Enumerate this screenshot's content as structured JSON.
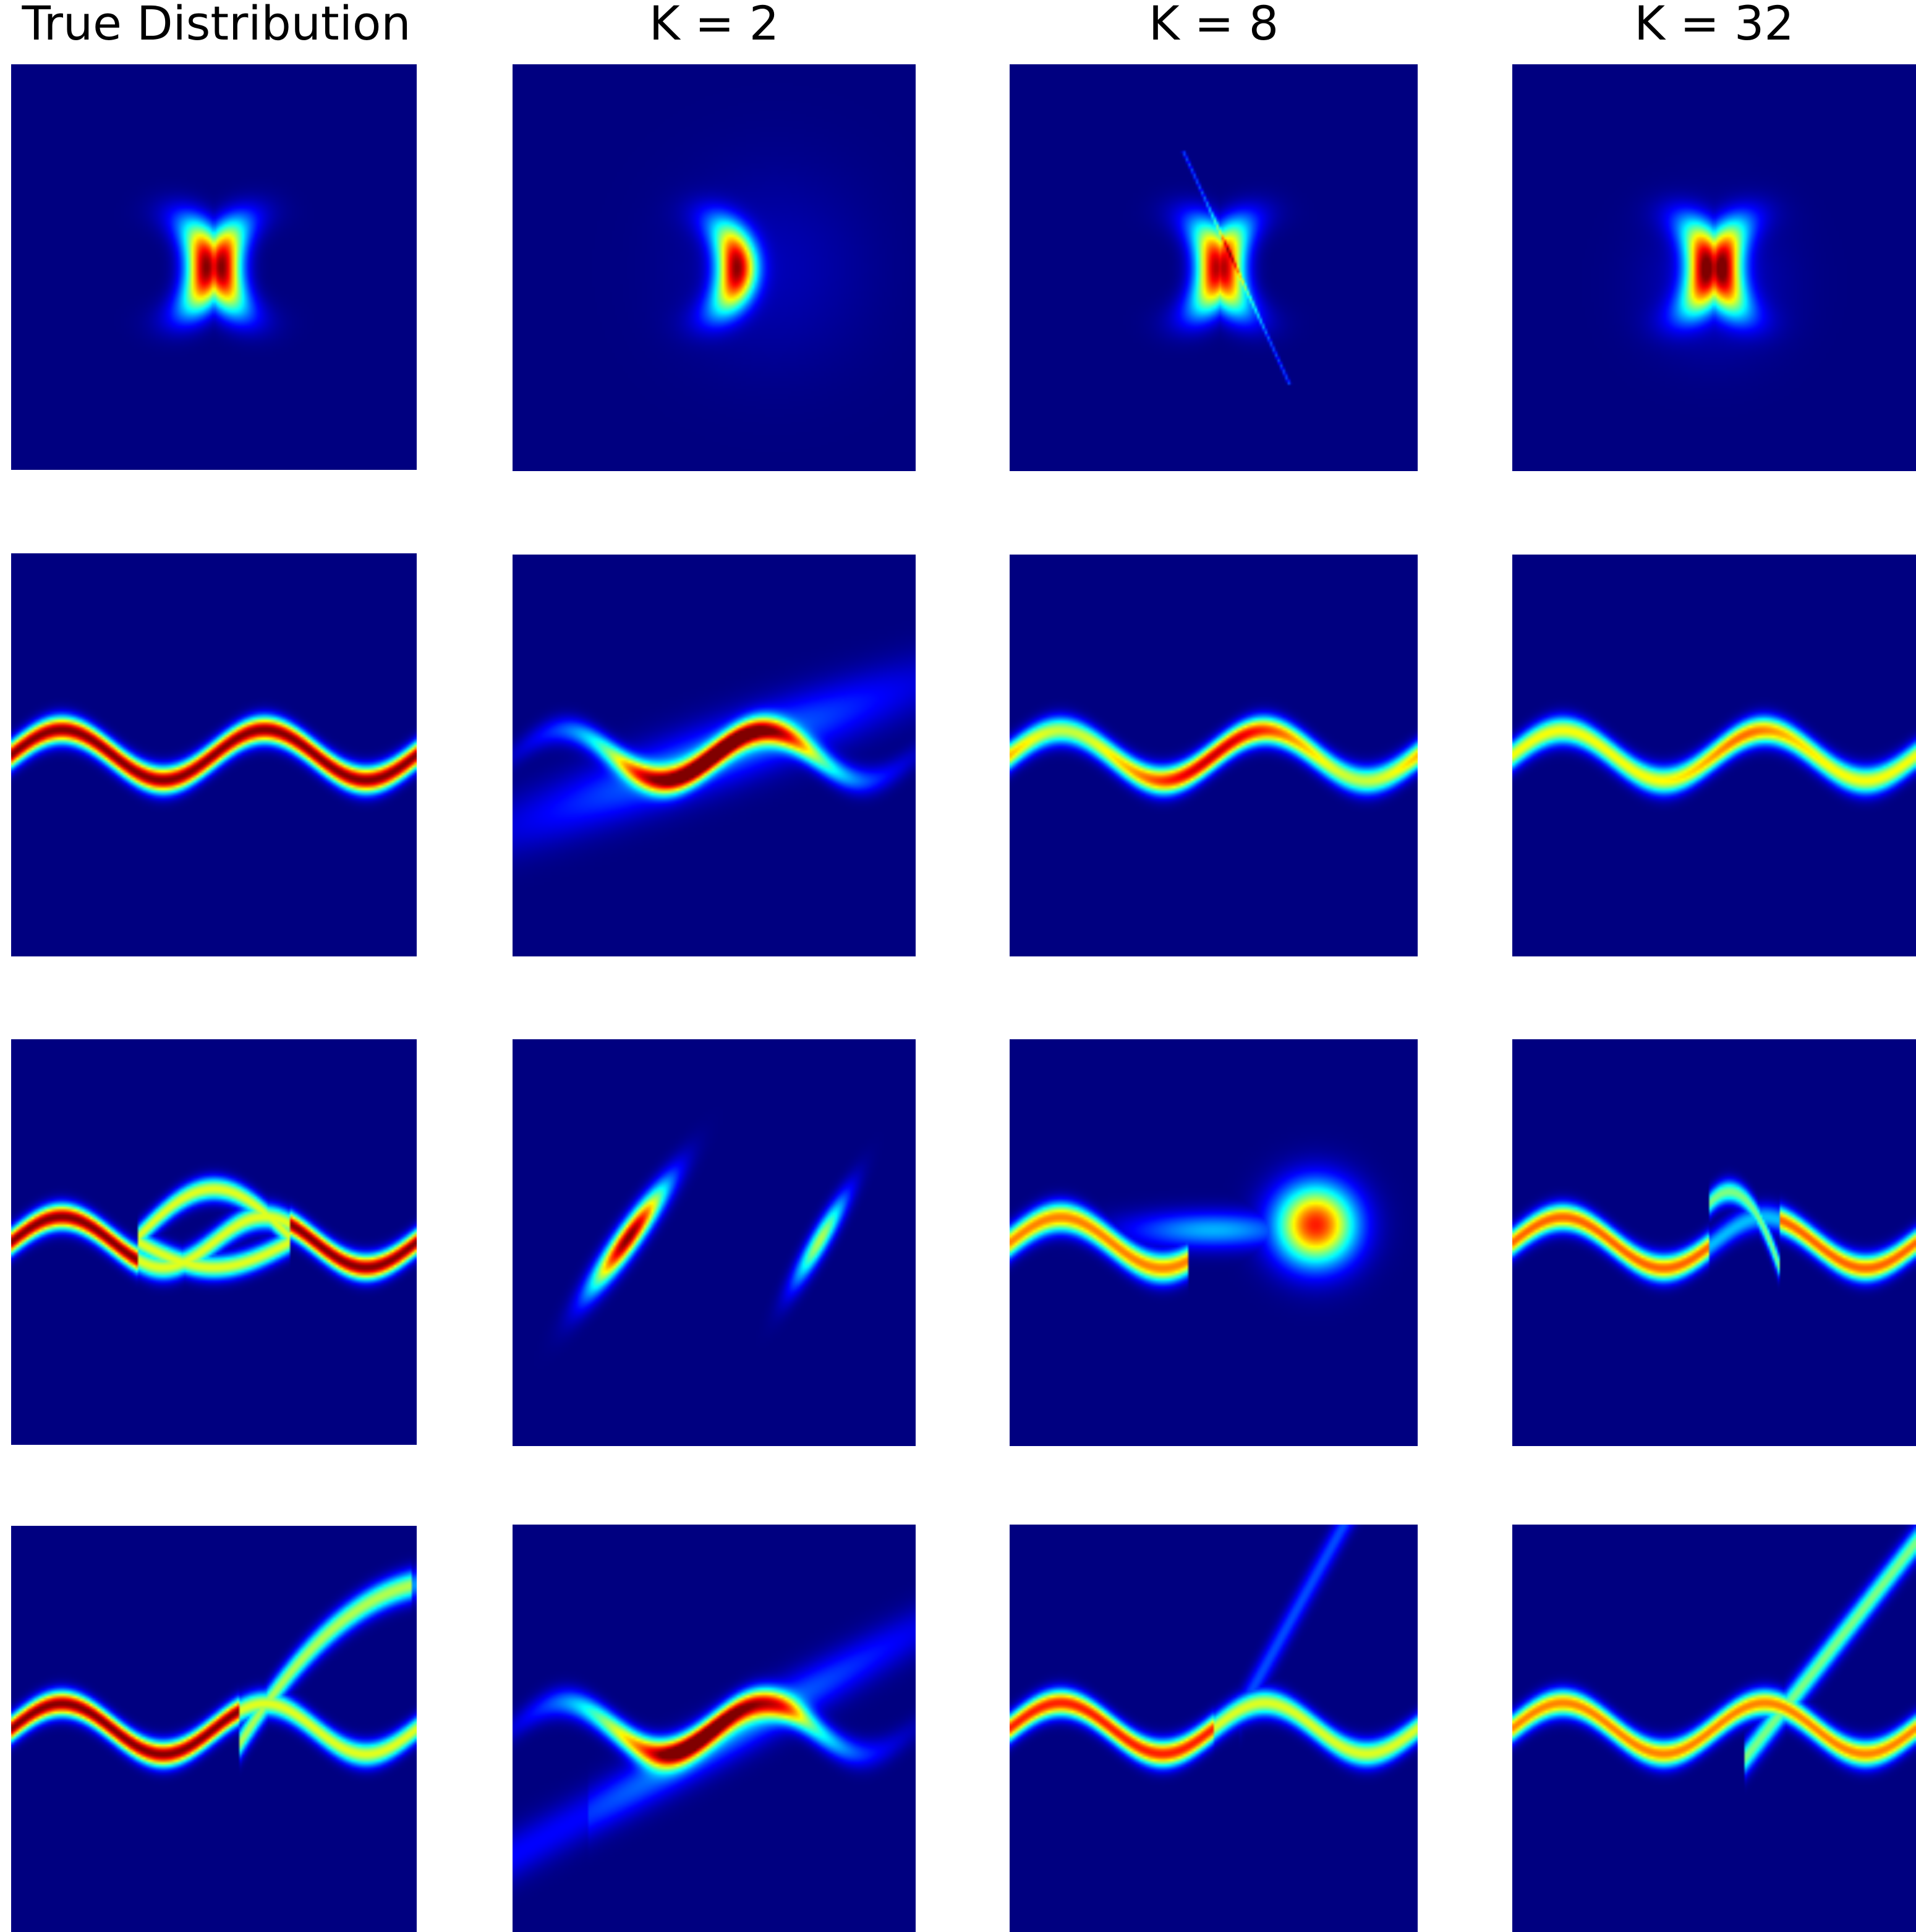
{
  "colormap": "jet",
  "background_color": "#00007f",
  "chart_data": {
    "type": "heatmap",
    "grid": false,
    "axes_visible": false,
    "columns": [
      {
        "id": "true",
        "title": "True Distribution"
      },
      {
        "id": "k2",
        "title": "K = 2"
      },
      {
        "id": "k8",
        "title": "K = 8"
      },
      {
        "id": "k32",
        "title": "K = 32"
      }
    ],
    "rows": [
      {
        "id": "moons",
        "description_key": "two crescents"
      },
      {
        "id": "sine",
        "description_key": "sine wave"
      },
      {
        "id": "sine-split",
        "description_key": "sine wave with split lobe"
      },
      {
        "id": "sine-branch",
        "description_key": "sine wave with diagonal branch"
      }
    ]
  }
}
